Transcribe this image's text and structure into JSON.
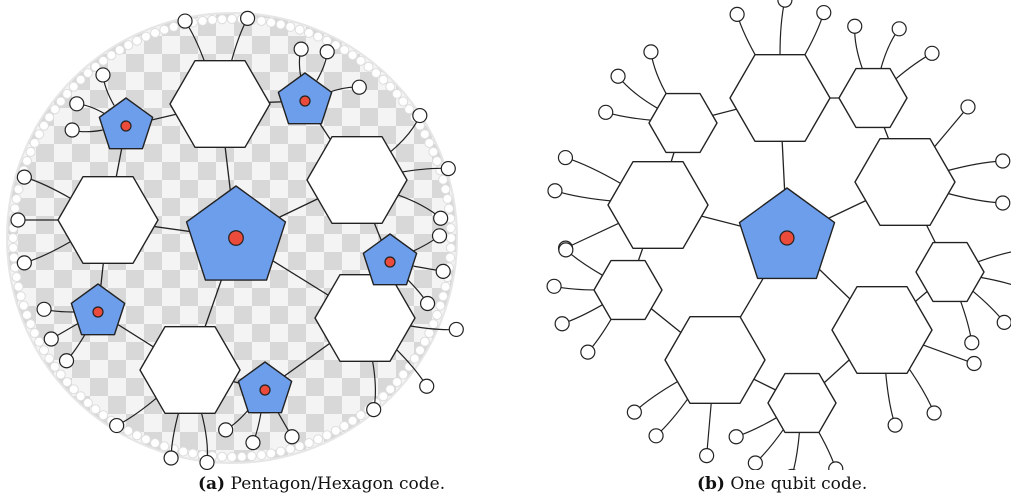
{
  "panels": [
    {
      "tag": "(a)",
      "caption": "Pentagon/Hexagon code."
    },
    {
      "tag": "(b)",
      "caption": "One qubit code."
    }
  ],
  "colors": {
    "pentagon_fill": "#6d9eeb",
    "qubit_dot": "#ea4b3b",
    "tiling_gray": "#d9d9d9",
    "stroke": "#222222"
  }
}
